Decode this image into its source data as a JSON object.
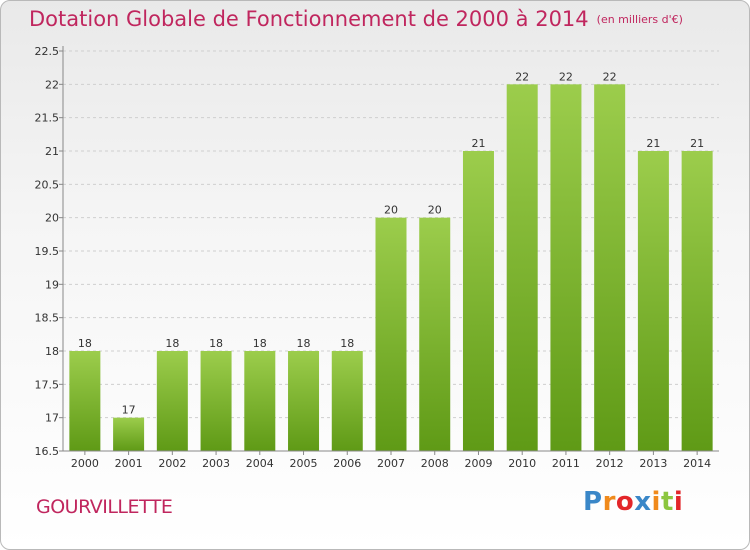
{
  "header": {
    "title": "Dotation Globale de Fonctionnement de 2000 à 2014",
    "unit": "(en milliers d'€)"
  },
  "footer": {
    "commune": "GOURVILLETTE",
    "logo": [
      "P",
      "r",
      "o",
      "x",
      "i",
      "t",
      "i"
    ]
  },
  "colors": {
    "title": "#c0265e",
    "bar_top": "#9ccd4c",
    "bar_bottom": "#5f9a16",
    "logo": [
      "#3a87c8",
      "#f08a1c",
      "#e3262a",
      "#3a87c8",
      "#f08a1c",
      "#8cc63f",
      "#e3262a"
    ]
  },
  "chart_data": {
    "type": "bar",
    "title": "Dotation Globale de Fonctionnement de 2000 à 2014",
    "xlabel": "",
    "ylabel": "",
    "categories": [
      "2000",
      "2001",
      "2002",
      "2003",
      "2004",
      "2005",
      "2006",
      "2007",
      "2008",
      "2009",
      "2010",
      "2011",
      "2012",
      "2013",
      "2014"
    ],
    "values": [
      18,
      17,
      18,
      18,
      18,
      18,
      18,
      20,
      20,
      21,
      22,
      22,
      22,
      21,
      21
    ],
    "ylim": [
      16.5,
      22.5
    ],
    "yticks": [
      "16.5",
      "17",
      "17.5",
      "18",
      "18.5",
      "19",
      "19.5",
      "20",
      "20.5",
      "21",
      "21.5",
      "22",
      "22.5"
    ],
    "grid": true
  }
}
